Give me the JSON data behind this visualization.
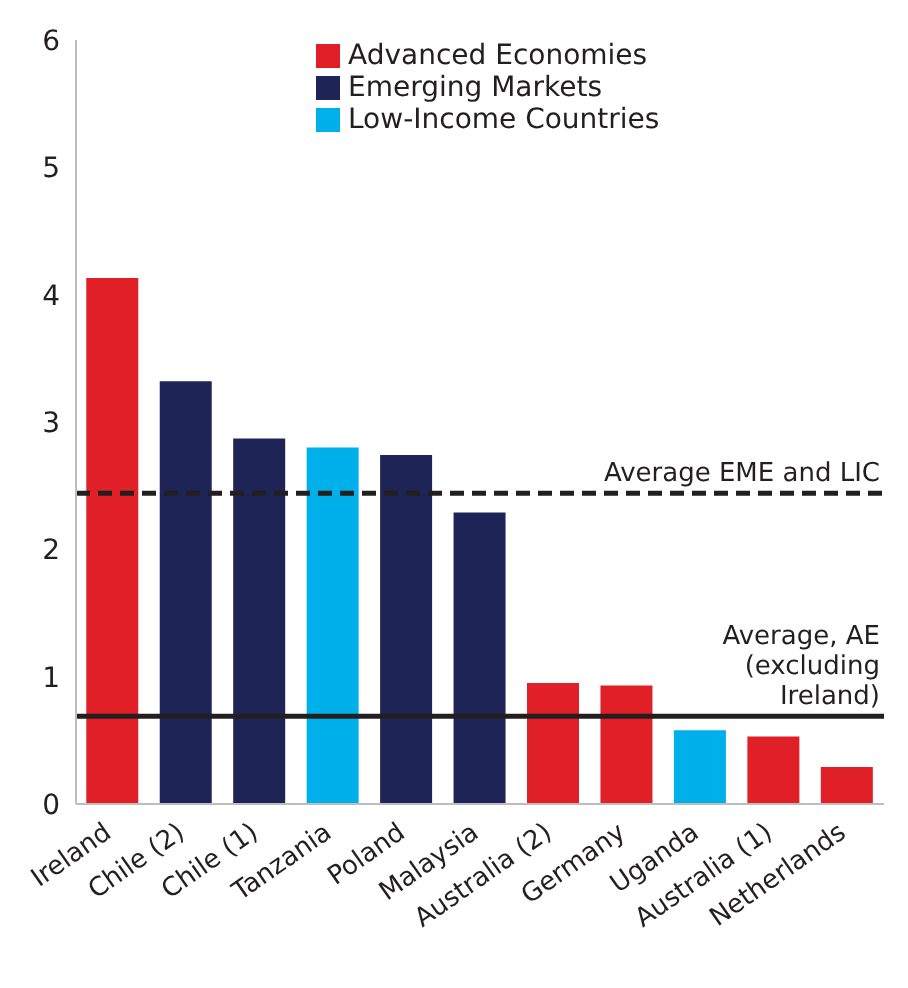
{
  "chart_data": {
    "type": "bar",
    "stacked": true,
    "categories": [
      "Ireland",
      "Chile (2)",
      "Chile (1)",
      "Tanzania",
      "Poland",
      "Malaysia",
      "Australia (2)",
      "Germany",
      "Uganda",
      "Australia (1)",
      "Netherlands"
    ],
    "series": [
      {
        "name": "Advanced Economies",
        "color": "#e01f26",
        "values": [
          4.13,
          null,
          null,
          null,
          null,
          null,
          0.95,
          0.93,
          null,
          0.53,
          0.29
        ]
      },
      {
        "name": "Emerging Markets",
        "color": "#1e2556",
        "values": [
          null,
          3.32,
          2.87,
          null,
          2.74,
          2.29,
          null,
          null,
          null,
          null,
          null
        ]
      },
      {
        "name": "Low-Income Countries",
        "color": "#00b0eb",
        "values": [
          null,
          null,
          null,
          2.8,
          null,
          null,
          null,
          null,
          0.58,
          null,
          null
        ]
      }
    ],
    "ylim": [
      0,
      6
    ],
    "yticks": [
      0,
      1,
      2,
      3,
      4,
      5,
      6
    ],
    "legend": "top",
    "ref_lines": [
      {
        "axis": "y",
        "value": 2.44,
        "label": "Average EME and LIC",
        "color": "#231f20",
        "line_style": "dashed"
      },
      {
        "axis": "y",
        "value": 0.69,
        "label": "Average, AE\n(excluding\nIreland)",
        "color": "#231f20",
        "line_style": "solid"
      }
    ]
  }
}
